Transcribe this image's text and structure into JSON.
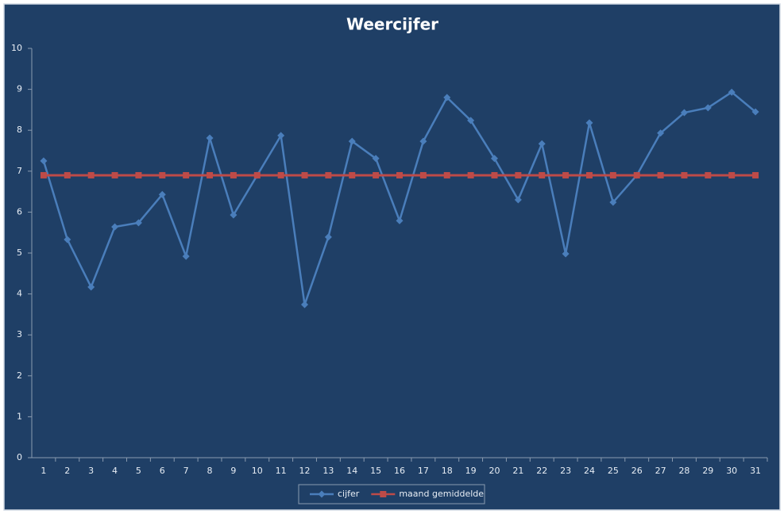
{
  "chart_data": {
    "type": "line",
    "title": "Weercijfer",
    "categories": [
      "1",
      "2",
      "3",
      "4",
      "5",
      "6",
      "7",
      "8",
      "9",
      "10",
      "11",
      "12",
      "13",
      "14",
      "15",
      "16",
      "17",
      "18",
      "19",
      "20",
      "21",
      "22",
      "23",
      "24",
      "25",
      "26",
      "27",
      "28",
      "29",
      "30",
      "31"
    ],
    "series": [
      {
        "name": "cijfer",
        "color": "#4a7ebb",
        "marker": "diamond",
        "values": [
          7.25,
          5.33,
          4.17,
          5.64,
          5.74,
          6.43,
          4.92,
          7.81,
          5.93,
          6.9,
          7.87,
          3.74,
          5.39,
          7.73,
          7.31,
          5.79,
          7.73,
          8.8,
          8.24,
          7.31,
          6.3,
          7.67,
          4.98,
          8.18,
          6.24,
          6.9,
          7.93,
          8.43,
          8.55,
          8.93,
          8.45
        ]
      },
      {
        "name": "maand gemiddelde",
        "color": "#be4b48",
        "marker": "square",
        "values": [
          6.9,
          6.9,
          6.9,
          6.9,
          6.9,
          6.9,
          6.9,
          6.9,
          6.9,
          6.9,
          6.9,
          6.9,
          6.9,
          6.9,
          6.9,
          6.9,
          6.9,
          6.9,
          6.9,
          6.9,
          6.9,
          6.9,
          6.9,
          6.9,
          6.9,
          6.9,
          6.9,
          6.9,
          6.9,
          6.9,
          6.9
        ]
      }
    ],
    "ylim": [
      0,
      10
    ],
    "yticks": [
      0,
      1,
      2,
      3,
      4,
      5,
      6,
      7,
      8,
      9,
      10
    ],
    "grid": false,
    "legend": "bottom"
  }
}
